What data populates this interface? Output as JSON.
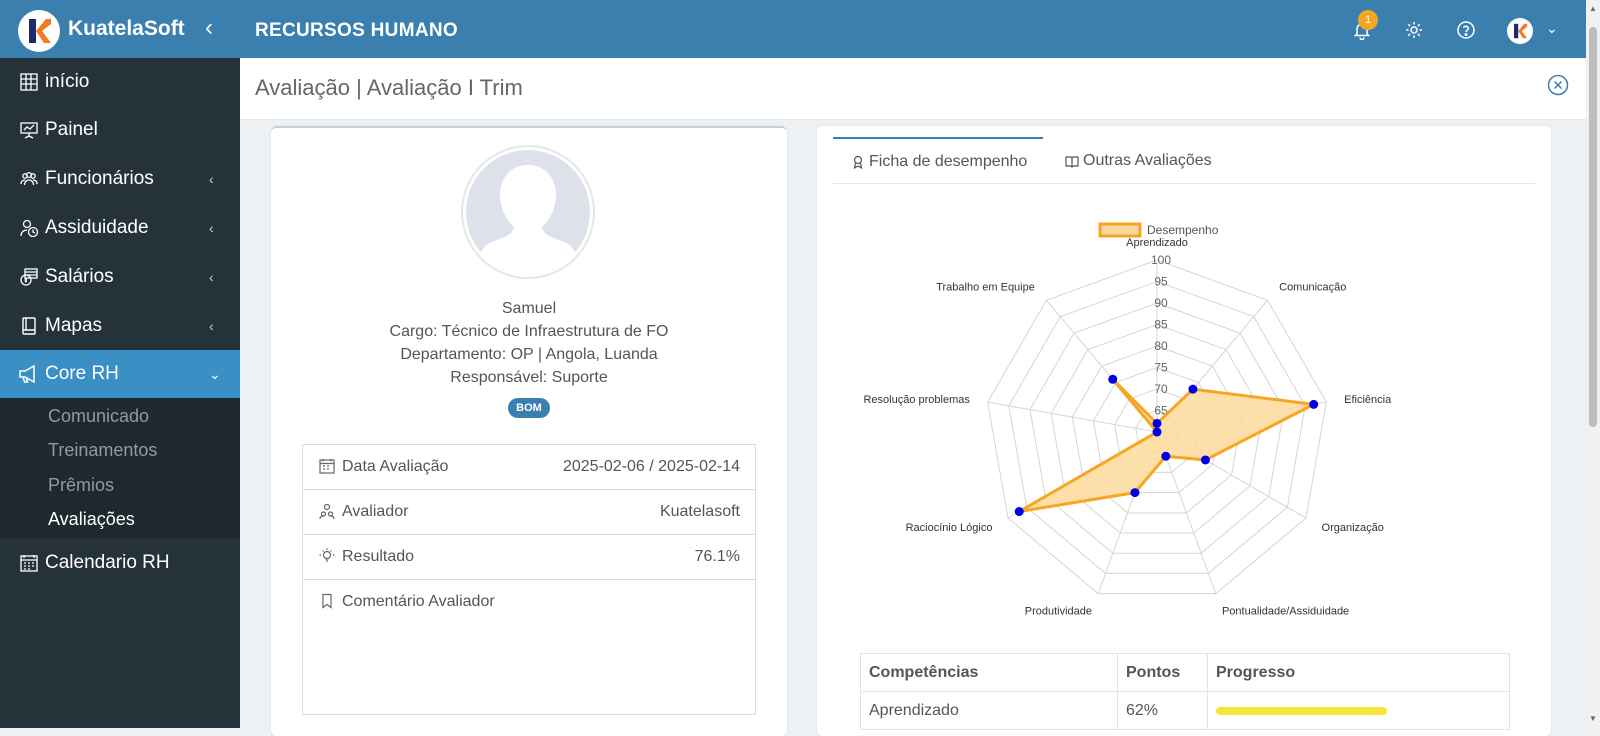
{
  "topbar": {
    "app_name": "KuatelaSoft",
    "collapse_glyph": "‹",
    "module_title": "RECURSOS HUMANO",
    "notification_count": "1",
    "icons": [
      "bell-icon",
      "gear-icon",
      "help-icon",
      "user-avatar",
      "chevron-down-icon"
    ]
  },
  "sidebar": {
    "items": [
      {
        "label": "início",
        "icon": "grid-icon"
      },
      {
        "label": "Painel",
        "icon": "presentation-icon"
      },
      {
        "label": "Funcionários",
        "icon": "users-icon",
        "chev": "‹"
      },
      {
        "label": "Assiduidade",
        "icon": "clock-user-icon",
        "chev": "‹"
      },
      {
        "label": "Salários",
        "icon": "money-icon",
        "chev": "‹"
      },
      {
        "label": "Mapas",
        "icon": "book-icon",
        "chev": "‹"
      },
      {
        "label": "Core RH",
        "icon": "megaphone-icon",
        "chev": "⌄"
      },
      {
        "label": "Calendario RH",
        "icon": "calendar-icon"
      }
    ],
    "submenu": [
      "Comunicado",
      "Treinamentos",
      "Prêmios",
      "Avaliações"
    ]
  },
  "page": {
    "title": "Avaliação | Avaliação I Trim"
  },
  "employee": {
    "name": "Samuel",
    "cargo": "Cargo: Técnico de Infraestrutura de FO",
    "departamento": "Departamento: OP | Angola, Luanda",
    "responsavel": "Responsável: Suporte",
    "badge": "BOM"
  },
  "details": {
    "data_label": "Data Avaliação",
    "data_value": "2025-02-06 / 2025-02-14",
    "avaliador_label": "Avaliador",
    "avaliador_value": "Kuatelasoft",
    "resultado_label": "Resultado",
    "resultado_value": "76.1%",
    "comentario_label": "Comentário Avaliador"
  },
  "tabs": {
    "ficha": "Ficha de desempenho",
    "outras": "Outras Avaliações"
  },
  "chart_data": {
    "type": "radar",
    "legend": "Desempenho",
    "axes": [
      "Aprendizado",
      "Comunicação",
      "Eficiência",
      "Organização",
      "Pontualidade/Assiduidade",
      "Produtividade",
      "Raciocínio Lógico",
      "Resolução problemas",
      "Trabalho em Equipe"
    ],
    "values": [
      62,
      73,
      97,
      73,
      66,
      75,
      97,
      60,
      76
    ],
    "ticks": [
      65,
      70,
      75,
      80,
      85,
      90,
      95,
      100
    ],
    "range": [
      60,
      100
    ],
    "colors": {
      "fill": "#fbd99a",
      "stroke": "#f5a623",
      "point": "#0000e6",
      "grid": "#d5d5d5"
    }
  },
  "table": {
    "headers": [
      "Competências",
      "Pontos",
      "Progresso"
    ],
    "rows": [
      {
        "name": "Aprendizado",
        "points": "62%",
        "progress": 0.62
      }
    ]
  }
}
